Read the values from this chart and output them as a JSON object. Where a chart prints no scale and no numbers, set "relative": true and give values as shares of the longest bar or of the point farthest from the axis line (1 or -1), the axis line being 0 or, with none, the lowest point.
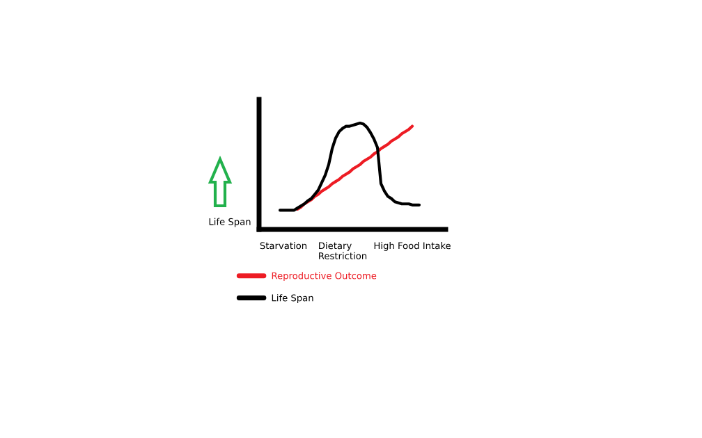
{
  "chart_data": {
    "type": "line",
    "relative": true,
    "categories": [
      null,
      "Starvation",
      null,
      null,
      null,
      null,
      null,
      null,
      null,
      null,
      null,
      null,
      null,
      null,
      null,
      null,
      null,
      null,
      "Dietary\nRestriction",
      null,
      null,
      null,
      null,
      null,
      null,
      null,
      null,
      null,
      null,
      null,
      null,
      null,
      null,
      null,
      null,
      null,
      null,
      null,
      "High Food Intake",
      null,
      null
    ],
    "ylabel": "Life Span",
    "series": [
      {
        "name": "Reproductive Outcome",
        "color": "#ed1c24",
        "values": [
          null,
          null,
          null,
          null,
          null,
          0.19,
          0.21,
          0.24,
          0.26,
          0.28,
          0.31,
          0.33,
          0.36,
          0.38,
          0.4,
          0.43,
          0.45,
          0.47,
          0.5,
          0.52,
          0.54,
          0.57,
          0.59,
          0.61,
          0.64,
          0.66,
          0.68,
          0.71,
          0.73,
          0.76,
          0.78,
          0.8,
          0.83,
          0.85,
          0.87,
          0.9,
          0.92,
          0.94,
          0.97,
          null,
          null
        ]
      },
      {
        "name": "Life Span",
        "color": "#000000",
        "values": [
          0.18,
          0.18,
          0.18,
          0.18,
          0.18,
          0.2,
          0.22,
          0.24,
          0.27,
          0.29,
          0.33,
          0.37,
          0.44,
          0.51,
          0.61,
          0.76,
          0.86,
          0.92,
          0.95,
          0.97,
          0.97,
          0.98,
          0.99,
          1,
          0.99,
          0.96,
          0.91,
          0.85,
          0.77,
          0.43,
          0.36,
          0.31,
          0.29,
          0.26,
          0.25,
          0.24,
          0.24,
          0.24,
          0.23,
          0.23,
          0.23
        ]
      }
    ],
    "legend": "bottom",
    "grid": false,
    "line_style": "solid",
    "tick_labels": "x"
  }
}
